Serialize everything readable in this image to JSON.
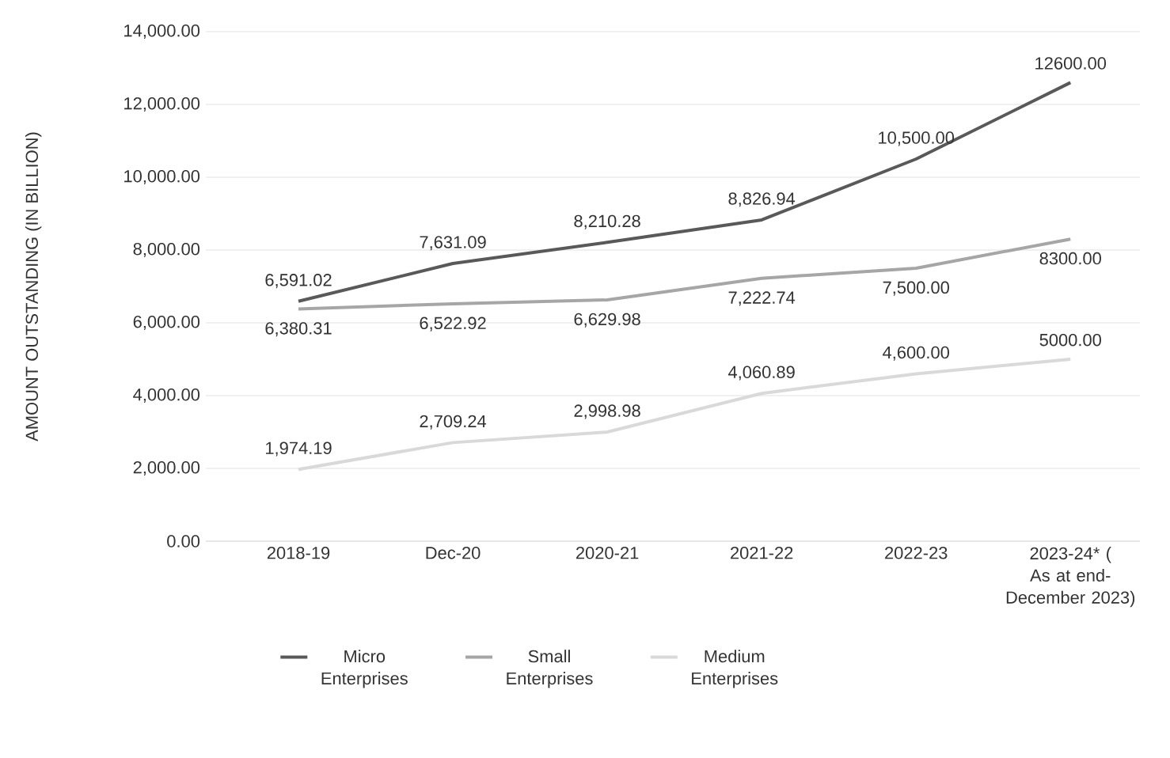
{
  "chart_data": {
    "type": "line",
    "categories": [
      "2018-19",
      "Dec-20",
      "2020-21",
      "2021-22",
      "2022-23",
      "2023-24* ( As at end-December 2023)"
    ],
    "ylabel": "AMOUNT OUTSTANDING (IN BILLION)",
    "ylim": [
      0,
      14000
    ],
    "yticks": [
      {
        "value": 0,
        "label": "0.00"
      },
      {
        "value": 2000,
        "label": "2,000.00"
      },
      {
        "value": 4000,
        "label": "4,000.00"
      },
      {
        "value": 6000,
        "label": "6,000.00"
      },
      {
        "value": 8000,
        "label": "8,000.00"
      },
      {
        "value": 10000,
        "label": "10,000.00"
      },
      {
        "value": 12000,
        "label": "12,000.00"
      },
      {
        "value": 14000,
        "label": "14,000.00"
      }
    ],
    "grid": "y",
    "legend": "bottom",
    "marker": "none",
    "line_style": "solid",
    "series": [
      {
        "name": "Micro Enterprises",
        "color": "#595959",
        "values": [
          6591.02,
          7631.09,
          8210.28,
          8826.94,
          10500,
          12600
        ],
        "value_labels": [
          "6,591.02",
          "7,631.09",
          "8,210.28",
          "8,826.94",
          "10,500.00",
          "12600.00"
        ]
      },
      {
        "name": "Small Enterprises",
        "color": "#a6a6a6",
        "values": [
          6380.31,
          6522.92,
          6629.98,
          7222.74,
          7500,
          8300
        ],
        "value_labels": [
          "6,380.31",
          "6,522.92",
          "6,629.98",
          "7,222.74",
          "7,500.00",
          "8300.00"
        ]
      },
      {
        "name": "Medium Enterprises",
        "color": "#d9d9d9",
        "values": [
          1974.19,
          2709.24,
          2998.98,
          4060.89,
          4600,
          5000
        ],
        "value_labels": [
          "1,974.19",
          "2,709.24",
          "2,998.98",
          "4,060.89",
          "4,600.00",
          "5000.00"
        ]
      }
    ]
  }
}
